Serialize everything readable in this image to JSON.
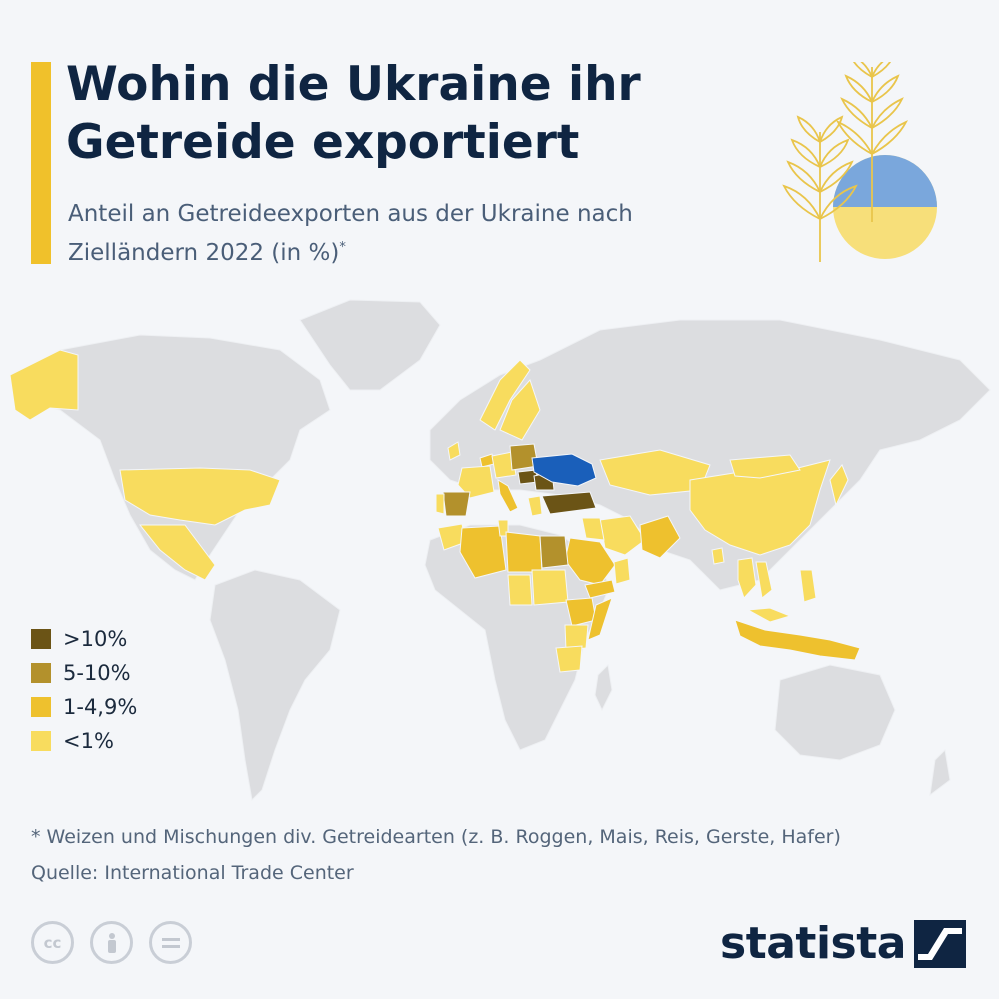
{
  "title": "Wohin die Ukraine ihr\nGetreide exportiert",
  "subtitle": "Anteil an Getreideexporten aus der Ukraine nach Zielländern 2022 (in %)",
  "subtitle_marker": "*",
  "colors": {
    "background": "#f4f6f9",
    "land": "#dcdde0",
    "accent": "#f0c12b",
    "ukraine": "#1a5fba",
    "title": "#0f2542",
    "text": "#4a5e78"
  },
  "legend": [
    {
      "label": ">10%",
      "color": "#6b5416"
    },
    {
      "label": "5-10%",
      "color": "#b3912c"
    },
    {
      "label": "1-4,9%",
      "color": "#eec12e"
    },
    {
      "label": "<1%",
      "color": "#f8dc5e"
    }
  ],
  "map": {
    "highlighted_country": "Ukraine",
    "categories": {
      ">10%": [
        "Turkey",
        "Romania",
        "Hungary"
      ],
      "5-10%": [
        "Spain",
        "Poland",
        "Egypt"
      ],
      "1-4,9%": [
        "Algeria",
        "Libya",
        "Saudi Arabia",
        "Yemen",
        "Pakistan",
        "Indonesia",
        "Ethiopia",
        "Netherlands",
        "Italy"
      ],
      "<1%": [
        "USA",
        "Mexico",
        "Alaska",
        "Norway",
        "Sweden",
        "Morocco",
        "Tunisia",
        "Sudan",
        "Chad",
        "Somalia",
        "Kenya",
        "Tanzania",
        "Kazakhstan",
        "China",
        "Mongolia",
        "Japan",
        "Vietnam",
        "Thailand",
        "Malaysia",
        "Philippines",
        "Bangladesh",
        "Iran",
        "Iraq",
        "Oman",
        "Germany",
        "France",
        "Greece",
        "Ireland",
        "Portugal"
      ]
    }
  },
  "footnote": "* Weizen und Mischungen div. Getreidearten (z. B. Roggen, Mais, Reis, Gerste, Hafer)",
  "source": "Quelle: International Trade Center",
  "license_icons": [
    "cc-icon",
    "attribution-icon",
    "no-derivatives-icon"
  ],
  "brand": {
    "name": "statista"
  }
}
